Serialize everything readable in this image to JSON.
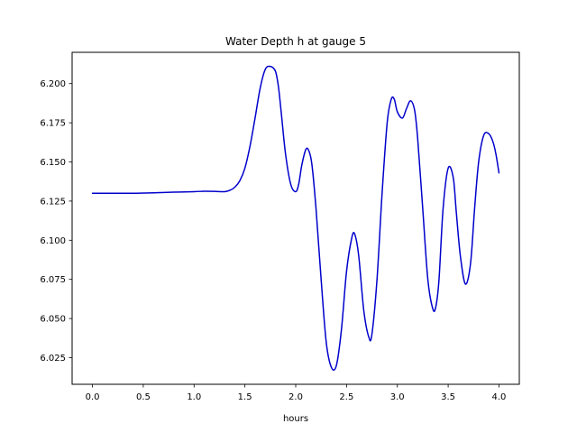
{
  "chart_data": {
    "type": "line",
    "title": "Water Depth h at gauge 5",
    "xlabel": "hours",
    "ylabel": "",
    "xlim": [
      -0.2,
      4.2
    ],
    "ylim": [
      6.008,
      6.22
    ],
    "xticks": [
      0.0,
      0.5,
      1.0,
      1.5,
      2.0,
      2.5,
      3.0,
      3.5,
      4.0
    ],
    "xtick_labels": [
      "0.0",
      "0.5",
      "1.0",
      "1.5",
      "2.0",
      "2.5",
      "3.0",
      "3.5",
      "4.0"
    ],
    "yticks": [
      6.025,
      6.05,
      6.075,
      6.1,
      6.125,
      6.15,
      6.175,
      6.2
    ],
    "ytick_labels": [
      "6.025",
      "6.050",
      "6.075",
      "6.100",
      "6.125",
      "6.150",
      "6.175",
      "6.200"
    ],
    "grid": false,
    "series": [
      {
        "color": "#0000cc",
        "x": [
          0.0,
          0.2,
          0.4,
          0.6,
          0.8,
          1.0,
          1.1,
          1.2,
          1.3,
          1.35,
          1.4,
          1.45,
          1.5,
          1.55,
          1.6,
          1.65,
          1.7,
          1.75,
          1.8,
          1.83,
          1.86,
          1.9,
          1.95,
          2.0,
          2.03,
          2.06,
          2.1,
          2.13,
          2.16,
          2.2,
          2.25,
          2.3,
          2.35,
          2.4,
          2.45,
          2.5,
          2.55,
          2.58,
          2.62,
          2.67,
          2.72,
          2.75,
          2.8,
          2.85,
          2.9,
          2.94,
          2.97,
          3.0,
          3.05,
          3.09,
          3.13,
          3.17,
          3.2,
          3.25,
          3.3,
          3.35,
          3.38,
          3.41,
          3.45,
          3.5,
          3.55,
          3.58,
          3.62,
          3.67,
          3.72,
          3.76,
          3.8,
          3.85,
          3.9,
          3.94,
          3.97,
          4.0
        ],
        "y": [
          6.13,
          6.13,
          6.13,
          6.1303,
          6.1307,
          6.131,
          6.1313,
          6.1312,
          6.131,
          6.1318,
          6.1338,
          6.138,
          6.146,
          6.16,
          6.178,
          6.197,
          6.209,
          6.211,
          6.208,
          6.198,
          6.18,
          6.155,
          6.136,
          6.131,
          6.136,
          6.148,
          6.158,
          6.157,
          6.148,
          6.12,
          6.075,
          6.035,
          6.019,
          6.02,
          6.043,
          6.08,
          6.101,
          6.104,
          6.09,
          6.055,
          6.038,
          6.04,
          6.075,
          6.13,
          6.175,
          6.19,
          6.19,
          6.182,
          6.178,
          6.184,
          6.189,
          6.183,
          6.165,
          6.12,
          6.075,
          6.056,
          6.058,
          6.075,
          6.12,
          6.146,
          6.14,
          6.118,
          6.09,
          6.072,
          6.085,
          6.12,
          6.15,
          6.167,
          6.168,
          6.163,
          6.155,
          6.143
        ]
      }
    ]
  }
}
